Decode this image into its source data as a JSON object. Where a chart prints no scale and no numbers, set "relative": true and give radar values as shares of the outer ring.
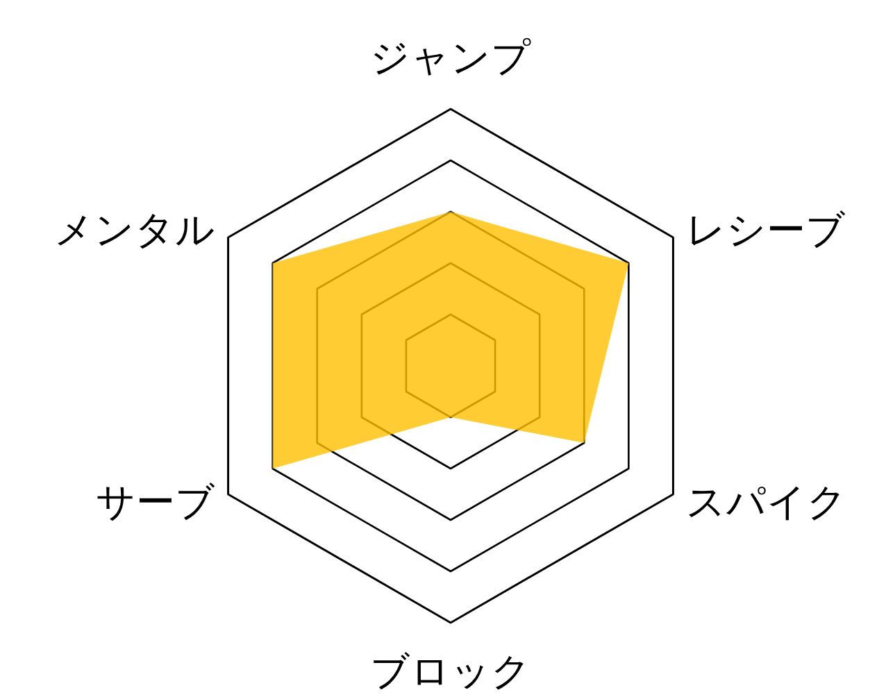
{
  "chart_data": {
    "type": "radar",
    "relative": true,
    "grid": true,
    "categories": [
      "ジャンプ",
      "レシーブ",
      "スパイク",
      "ブロック",
      "サーブ",
      "メンタル"
    ],
    "series": [
      {
        "color": "#ffc000",
        "values": [
          0.6,
          0.8,
          0.6,
          0.2,
          0.8,
          0.8
        ]
      }
    ]
  }
}
